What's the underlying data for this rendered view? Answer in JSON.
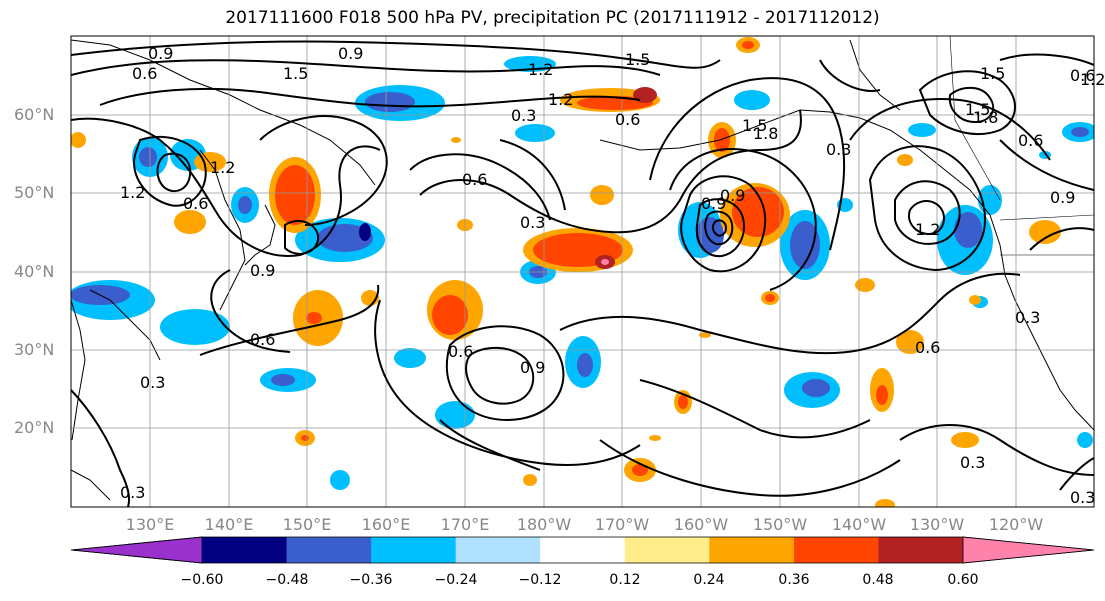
{
  "title": "2017111600 F018 500 hPa PV, precipitation PC (2017111912 - 2017112012)",
  "lat_labels": [
    "60°N",
    "50°N",
    "40°N",
    "30°N",
    "20°N"
  ],
  "lon_labels": [
    "130°E",
    "140°E",
    "150°E",
    "160°E",
    "170°E",
    "180°W",
    "170°W",
    "160°W",
    "150°W",
    "140°W",
    "130°W",
    "120°W"
  ],
  "contour_labels": [
    "0.9",
    "0.9",
    "1.5",
    "1.5",
    "1.2",
    "1.2",
    "0.6",
    "0.3",
    "0.6",
    "1.5",
    "1.8",
    "0.9",
    "1.5",
    "0.6",
    "1.2",
    "0.6",
    "0.6",
    "0.9",
    "0.3",
    "0.6",
    "0.3",
    "1.8",
    "1.5",
    "0.9",
    "1.2",
    "0.3",
    "0.9",
    "0.6",
    "0.6",
    "0.9",
    "0.3",
    "0.3",
    "0.3",
    "0.3",
    "1.2",
    "1.2",
    "0.6"
  ],
  "colorbar": {
    "colors": [
      "#9932cc",
      "#000080",
      "#3a5fcd",
      "#00bfff",
      "#b0e2ff",
      "#ffffff",
      "#ffec8b",
      "#ffa500",
      "#ff4500",
      "#b22222",
      "#ff82ab"
    ],
    "tick_labels": [
      "−0.60",
      "−0.48",
      "−0.36",
      "−0.24",
      "−0.12",
      "0.12",
      "0.24",
      "0.36",
      "0.48",
      "0.60"
    ]
  },
  "colors": {
    "coast": "#000000",
    "grid": "#999999",
    "contour": "#000000"
  }
}
